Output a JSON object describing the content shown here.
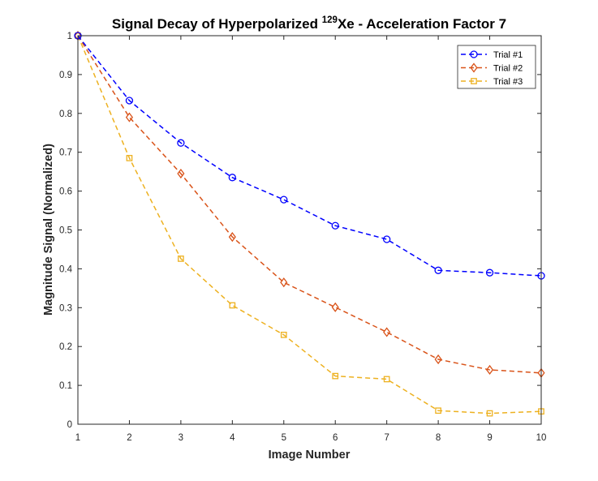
{
  "chart_data": {
    "type": "line",
    "title": {
      "prefix": "Signal Decay of Hyperpolarized ",
      "superscript": "129",
      "suffix": "Xe - Acceleration Factor 7"
    },
    "xlabel": "Image Number",
    "ylabel": "Magnitude Signal (Normalized)",
    "xlim": [
      1,
      10
    ],
    "ylim": [
      0,
      1
    ],
    "xticks": [
      1,
      2,
      3,
      4,
      5,
      6,
      7,
      8,
      9,
      10
    ],
    "xtick_labels": [
      "1",
      "2",
      "3",
      "4",
      "5",
      "6",
      "7",
      "8",
      "9",
      "10"
    ],
    "yticks": [
      0,
      0.1,
      0.2,
      0.3,
      0.4,
      0.5,
      0.6,
      0.7,
      0.8,
      0.9,
      1
    ],
    "ytick_labels": [
      "0",
      "0.1",
      "0.2",
      "0.3",
      "0.4",
      "0.5",
      "0.6",
      "0.7",
      "0.8",
      "0.9",
      "1"
    ],
    "grid": false,
    "legend_position": "top-right",
    "x": [
      1,
      2,
      3,
      4,
      5,
      6,
      7,
      8,
      9,
      10
    ],
    "series": [
      {
        "name": "Trial #1",
        "color": "#0000ff",
        "marker": "circle",
        "line_style": "dashed",
        "values": [
          1.0,
          0.833,
          0.724,
          0.635,
          0.578,
          0.511,
          0.476,
          0.396,
          0.39,
          0.382
        ]
      },
      {
        "name": "Trial #2",
        "color": "#d95319",
        "marker": "diamond",
        "line_style": "dashed",
        "values": [
          1.0,
          0.79,
          0.645,
          0.482,
          0.365,
          0.301,
          0.237,
          0.167,
          0.14,
          0.132
        ]
      },
      {
        "name": "Trial #3",
        "color": "#edb120",
        "marker": "square",
        "line_style": "dashed",
        "values": [
          1.0,
          0.685,
          0.426,
          0.306,
          0.23,
          0.124,
          0.116,
          0.035,
          0.028,
          0.033
        ]
      }
    ]
  }
}
